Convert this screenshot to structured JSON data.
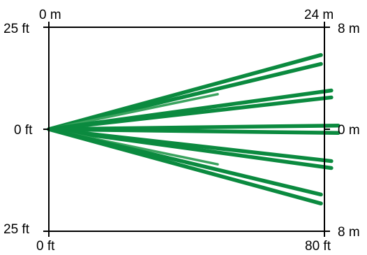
{
  "chart_data": {
    "type": "diagram",
    "title": "",
    "bottom_axis": {
      "start_label": "0 ft",
      "end_label": "80 ft",
      "range": [
        0,
        80
      ],
      "unit": "ft"
    },
    "top_axis": {
      "start_label": "0 m",
      "end_label": "24 m",
      "range": [
        0,
        24
      ],
      "unit": "m"
    },
    "left_axis": {
      "top_label": "25 ft",
      "middle_label": "0 ft",
      "bottom_label": "25 ft",
      "half_range": 25,
      "unit": "ft"
    },
    "right_axis": {
      "top_label": "8 m",
      "middle_label": "0 m",
      "bottom_label": "8 m",
      "half_range": 8,
      "unit": "m"
    },
    "beams": [
      {
        "end_x": 79,
        "end_y": 18.2,
        "color": "#0b8a3f",
        "weight": "thick"
      },
      {
        "end_x": 79,
        "end_y": 16.0,
        "color": "#0b8a3f",
        "weight": "thick"
      },
      {
        "end_x": 49,
        "end_y": 8.6,
        "color": "#3aa35e",
        "weight": "thin"
      },
      {
        "end_x": 82,
        "end_y": 9.5,
        "color": "#0b8a3f",
        "weight": "thick"
      },
      {
        "end_x": 82,
        "end_y": 7.8,
        "color": "#0b8a3f",
        "weight": "thick"
      },
      {
        "end_x": 84,
        "end_y": 0.9,
        "color": "#0b8a3f",
        "weight": "thick"
      },
      {
        "end_x": 84,
        "end_y": -0.9,
        "color": "#0b8a3f",
        "weight": "thick"
      },
      {
        "end_x": 82,
        "end_y": -7.8,
        "color": "#0b8a3f",
        "weight": "thick"
      },
      {
        "end_x": 82,
        "end_y": -9.5,
        "color": "#0b8a3f",
        "weight": "thick"
      },
      {
        "end_x": 49,
        "end_y": -8.6,
        "color": "#3aa35e",
        "weight": "thin"
      },
      {
        "end_x": 79,
        "end_y": -16.0,
        "color": "#0b8a3f",
        "weight": "thick"
      },
      {
        "end_x": 79,
        "end_y": -18.2,
        "color": "#0b8a3f",
        "weight": "thick"
      }
    ]
  }
}
